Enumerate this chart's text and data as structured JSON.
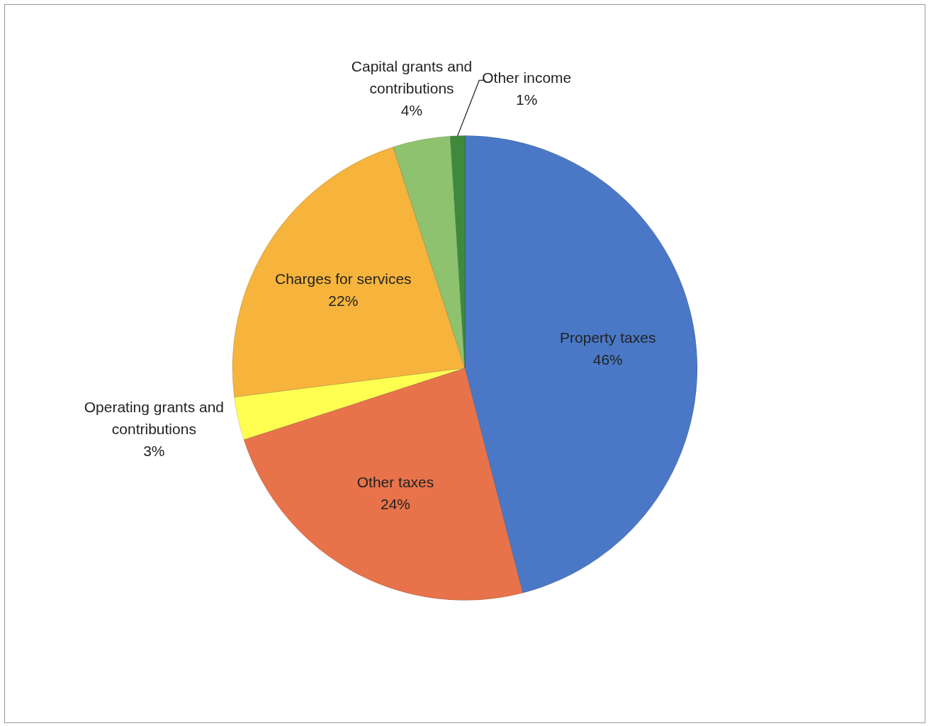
{
  "chart_data": {
    "type": "pie",
    "categories": [
      "Property taxes",
      "Other taxes",
      "Operating grants and contributions",
      "Charges for services",
      "Capital grants and contributions",
      "Other income"
    ],
    "values": [
      46,
      24,
      3,
      22,
      4,
      1
    ],
    "colors": [
      "#4a78c6",
      "#e8734a",
      "#ffff52",
      "#f6b43c",
      "#8ec26f",
      "#3d8a3d"
    ],
    "value_labels": [
      "46%",
      "24%",
      "3%",
      "22%",
      "4%",
      "1%"
    ],
    "legend": false
  }
}
